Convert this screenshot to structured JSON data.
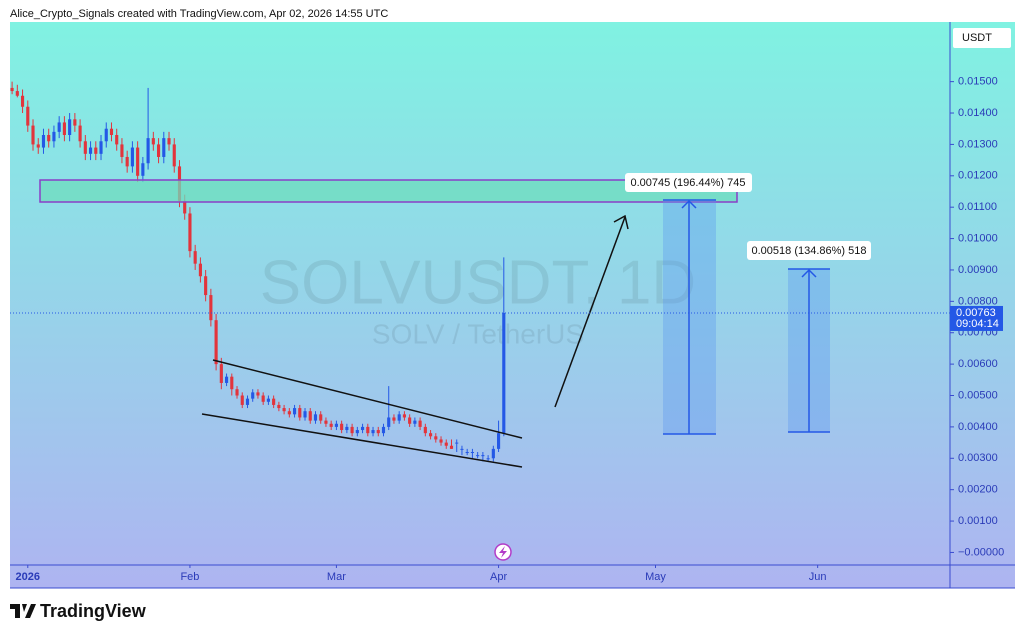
{
  "chart_data": {
    "type": "candlestick",
    "header": "Alice_Crypto_Signals created with TradingView.com, Apr 02, 2026 14:55 UTC",
    "title": "SOLVUSDT, 1D",
    "subtitle": "SOLV / TetherUS",
    "currency": "USDT",
    "brand": "TradingView",
    "up_color": "#2458e6",
    "down_color": "#e2343c",
    "last_price": 0.00763,
    "countdown": "09:04:14",
    "measures": [
      "0.00745 (196.44%) 745",
      "0.00518 (134.86%) 518"
    ],
    "xlim": [
      -3.4,
      176.3
    ],
    "xticks": [
      {
        "value": 0,
        "label": "2026"
      },
      {
        "value": 31,
        "label": "Feb"
      },
      {
        "value": 59,
        "label": "Mar"
      },
      {
        "value": 90,
        "label": "Apr"
      },
      {
        "value": 120,
        "label": "May"
      },
      {
        "value": 151,
        "label": "Jun"
      }
    ],
    "ylim": [
      -0.0004,
      0.0169
    ],
    "yticks": [
      {
        "value": 0,
        "label": "−0.00000"
      },
      {
        "value": 0.001,
        "label": "0.00100"
      },
      {
        "value": 0.002,
        "label": "0.00200"
      },
      {
        "value": 0.003,
        "label": "0.00300"
      },
      {
        "value": 0.004,
        "label": "0.00400"
      },
      {
        "value": 0.005,
        "label": "0.00500"
      },
      {
        "value": 0.006,
        "label": "0.00600"
      },
      {
        "value": 0.007,
        "label": "0.00700"
      },
      {
        "value": 0.008,
        "label": "0.00800"
      },
      {
        "value": 0.009,
        "label": "0.00900"
      },
      {
        "value": 0.01,
        "label": "0.01000"
      },
      {
        "value": 0.011,
        "label": "0.01100"
      },
      {
        "value": 0.012,
        "label": "0.01200"
      },
      {
        "value": 0.013,
        "label": "0.01300"
      },
      {
        "value": 0.014,
        "label": "0.01400"
      },
      {
        "value": 0.015,
        "label": "0.01500"
      }
    ],
    "x": [
      -3,
      -2,
      -1,
      0,
      1,
      2,
      3,
      4,
      5,
      6,
      7,
      8,
      9,
      10,
      11,
      12,
      13,
      14,
      15,
      16,
      17,
      18,
      19,
      20,
      21,
      22,
      23,
      24,
      25,
      26,
      27,
      28,
      29,
      30,
      31,
      32,
      33,
      34,
      35,
      36,
      37,
      38,
      39,
      40,
      41,
      42,
      43,
      44,
      45,
      46,
      47,
      48,
      49,
      50,
      51,
      52,
      53,
      54,
      55,
      56,
      57,
      58,
      59,
      60,
      61,
      62,
      63,
      64,
      65,
      66,
      67,
      68,
      69,
      70,
      71,
      72,
      73,
      74,
      75,
      76,
      77,
      78,
      79,
      80,
      81,
      82,
      83,
      84,
      85,
      86,
      87,
      88,
      89,
      90,
      91
    ],
    "open": [
      0.0148,
      0.0147,
      0.01455,
      0.0142,
      0.0136,
      0.013,
      0.0129,
      0.0133,
      0.0131,
      0.0134,
      0.0137,
      0.0133,
      0.0138,
      0.0136,
      0.0131,
      0.0127,
      0.0129,
      0.0127,
      0.0131,
      0.0135,
      0.0133,
      0.013,
      0.0126,
      0.0123,
      0.0129,
      0.012,
      0.0124,
      0.0132,
      0.013,
      0.0126,
      0.0132,
      0.013,
      0.0123,
      0.0112,
      0.0108,
      0.0096,
      0.0092,
      0.0088,
      0.0082,
      0.0074,
      0.006,
      0.0054,
      0.0056,
      0.0052,
      0.005,
      0.0047,
      0.0049,
      0.0051,
      0.005,
      0.0048,
      0.0049,
      0.0047,
      0.0046,
      0.0045,
      0.0044,
      0.0046,
      0.0043,
      0.0045,
      0.0042,
      0.0044,
      0.0042,
      0.0041,
      0.004,
      0.0041,
      0.0039,
      0.004,
      0.0038,
      0.0039,
      0.004,
      0.0038,
      0.0039,
      0.0038,
      0.004,
      0.0043,
      0.0042,
      0.0044,
      0.0043,
      0.0041,
      0.0042,
      0.004,
      0.0038,
      0.0037,
      0.0036,
      0.0035,
      0.0034,
      0.0035,
      0.0033,
      0.0032,
      0.0032,
      0.0031,
      0.0031,
      0.003,
      0.003,
      0.0033,
      0.0038
    ],
    "high": [
      0.015,
      0.0149,
      0.01475,
      0.0144,
      0.0138,
      0.0132,
      0.0135,
      0.0135,
      0.0136,
      0.0139,
      0.0139,
      0.014,
      0.014,
      0.0138,
      0.0133,
      0.0131,
      0.0131,
      0.0133,
      0.0137,
      0.0137,
      0.0135,
      0.0132,
      0.0128,
      0.0131,
      0.0131,
      0.0126,
      0.0148,
      0.0134,
      0.0132,
      0.0134,
      0.0134,
      0.0132,
      0.0125,
      0.0114,
      0.011,
      0.0098,
      0.0094,
      0.009,
      0.0084,
      0.0076,
      0.0062,
      0.0057,
      0.0057,
      0.0053,
      0.0051,
      0.005,
      0.0052,
      0.0052,
      0.0051,
      0.005,
      0.005,
      0.0048,
      0.0047,
      0.0046,
      0.0047,
      0.0047,
      0.0046,
      0.0046,
      0.0045,
      0.0045,
      0.0043,
      0.0042,
      0.0042,
      0.0042,
      0.0041,
      0.0041,
      0.004,
      0.0041,
      0.0041,
      0.004,
      0.004,
      0.0041,
      0.0053,
      0.0044,
      0.0045,
      0.0045,
      0.0044,
      0.0043,
      0.0043,
      0.0041,
      0.0039,
      0.0038,
      0.0037,
      0.0036,
      0.0036,
      0.0036,
      0.0034,
      0.0033,
      0.0033,
      0.0032,
      0.0032,
      0.0031,
      0.0034,
      0.0042,
      0.0094
    ],
    "low": [
      0.0146,
      0.0145,
      0.014,
      0.0134,
      0.0128,
      0.0127,
      0.0127,
      0.0129,
      0.0129,
      0.0132,
      0.0131,
      0.0131,
      0.0134,
      0.0129,
      0.0125,
      0.0125,
      0.0125,
      0.0125,
      0.0129,
      0.0131,
      0.0128,
      0.0124,
      0.0121,
      0.0121,
      0.0118,
      0.0118,
      0.0122,
      0.0128,
      0.0124,
      0.0124,
      0.0128,
      0.0121,
      0.011,
      0.0106,
      0.0094,
      0.009,
      0.0086,
      0.008,
      0.0072,
      0.0058,
      0.0052,
      0.0053,
      0.005,
      0.0049,
      0.0046,
      0.0046,
      0.0048,
      0.0049,
      0.0047,
      0.0047,
      0.0046,
      0.0045,
      0.0044,
      0.0043,
      0.0043,
      0.0042,
      0.0042,
      0.0041,
      0.0041,
      0.0041,
      0.004,
      0.0039,
      0.0039,
      0.0038,
      0.0038,
      0.0037,
      0.0037,
      0.0038,
      0.0037,
      0.0037,
      0.0037,
      0.0037,
      0.0039,
      0.0041,
      0.0041,
      0.0042,
      0.004,
      0.004,
      0.0039,
      0.0037,
      0.0036,
      0.0035,
      0.0034,
      0.0033,
      0.0033,
      0.0032,
      0.0031,
      0.0031,
      0.003,
      0.003,
      0.0029,
      0.0029,
      0.0029,
      0.0032,
      0.0037
    ],
    "close": [
      0.0147,
      0.01455,
      0.0142,
      0.0136,
      0.013,
      0.0129,
      0.0133,
      0.0131,
      0.0134,
      0.0137,
      0.0133,
      0.0138,
      0.0136,
      0.0131,
      0.0127,
      0.0129,
      0.0127,
      0.0131,
      0.0135,
      0.0133,
      0.013,
      0.0126,
      0.0123,
      0.0129,
      0.012,
      0.0124,
      0.0132,
      0.013,
      0.0126,
      0.0132,
      0.013,
      0.0123,
      0.0112,
      0.0108,
      0.0096,
      0.0092,
      0.0088,
      0.0082,
      0.0074,
      0.006,
      0.0054,
      0.0056,
      0.0052,
      0.005,
      0.0047,
      0.0049,
      0.0051,
      0.005,
      0.0048,
      0.0049,
      0.0047,
      0.0046,
      0.0045,
      0.0044,
      0.0046,
      0.0043,
      0.0045,
      0.0042,
      0.0044,
      0.0042,
      0.0041,
      0.004,
      0.0041,
      0.0039,
      0.004,
      0.0038,
      0.0039,
      0.004,
      0.0038,
      0.0039,
      0.0038,
      0.004,
      0.0043,
      0.0042,
      0.0044,
      0.0043,
      0.0041,
      0.0042,
      0.004,
      0.0038,
      0.0037,
      0.0036,
      0.0035,
      0.0034,
      0.0033,
      0.0035,
      0.0033,
      0.0032,
      0.0032,
      0.0031,
      0.0031,
      0.003,
      0.0033,
      0.0038,
      0.00763
    ]
  }
}
